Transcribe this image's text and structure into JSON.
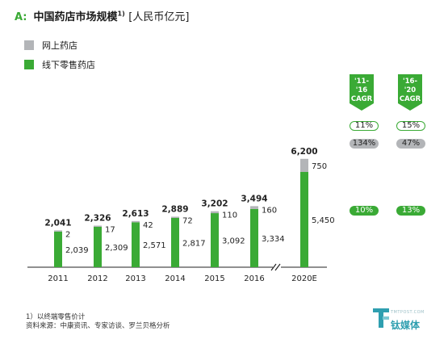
{
  "title": {
    "prefix": "A:",
    "text": "中国药店市场规模",
    "footnote_mark": "1)",
    "unit": "[人民币亿元]"
  },
  "legend": [
    {
      "label": "网上药店",
      "color": "#b3b5b8"
    },
    {
      "label": "线下零售药店",
      "color": "#3aaa35"
    }
  ],
  "chart_data": {
    "type": "bar",
    "stacked": true,
    "categories": [
      "2011",
      "2012",
      "2013",
      "2014",
      "2015",
      "2016",
      "2020E"
    ],
    "series": [
      {
        "name": "线下零售药店",
        "color": "#3aaa35",
        "values": [
          2039,
          2309,
          2571,
          2817,
          3092,
          3334,
          5450
        ]
      },
      {
        "name": "网上药店",
        "color": "#b3b5b8",
        "values": [
          2,
          17,
          42,
          72,
          110,
          160,
          750
        ]
      }
    ],
    "totals": [
      "2,041",
      "2,326",
      "2,613",
      "2,889",
      "3,202",
      "3,494",
      "6,200"
    ],
    "online_labels": [
      "2",
      "17",
      "42",
      "72",
      "110",
      "160",
      "750"
    ],
    "offline_labels": [
      "2,039",
      "2,309",
      "2,571",
      "2,817",
      "3,092",
      "3,334",
      "5,450"
    ],
    "axis_break_between": [
      "2016",
      "2020E"
    ]
  },
  "cagr": {
    "columns": [
      {
        "label": "'11-'16\nCAGR",
        "online": "134%",
        "offline": "10%",
        "total": "11%"
      },
      {
        "label": "'16-'20\nCAGR",
        "online": "47%",
        "offline": "13%",
        "total": "15%"
      }
    ]
  },
  "footnotes": [
    "1）以终端零售价计",
    "资料来源：中康资讯、专家访谈、罗兰贝格分析"
  ],
  "watermark": {
    "text": "钛媒体",
    "sub": "TMTPOST.COM"
  },
  "colors": {
    "accent": "#3aaa35",
    "grey": "#b3b5b8",
    "watermark": "#2f9fb0"
  }
}
